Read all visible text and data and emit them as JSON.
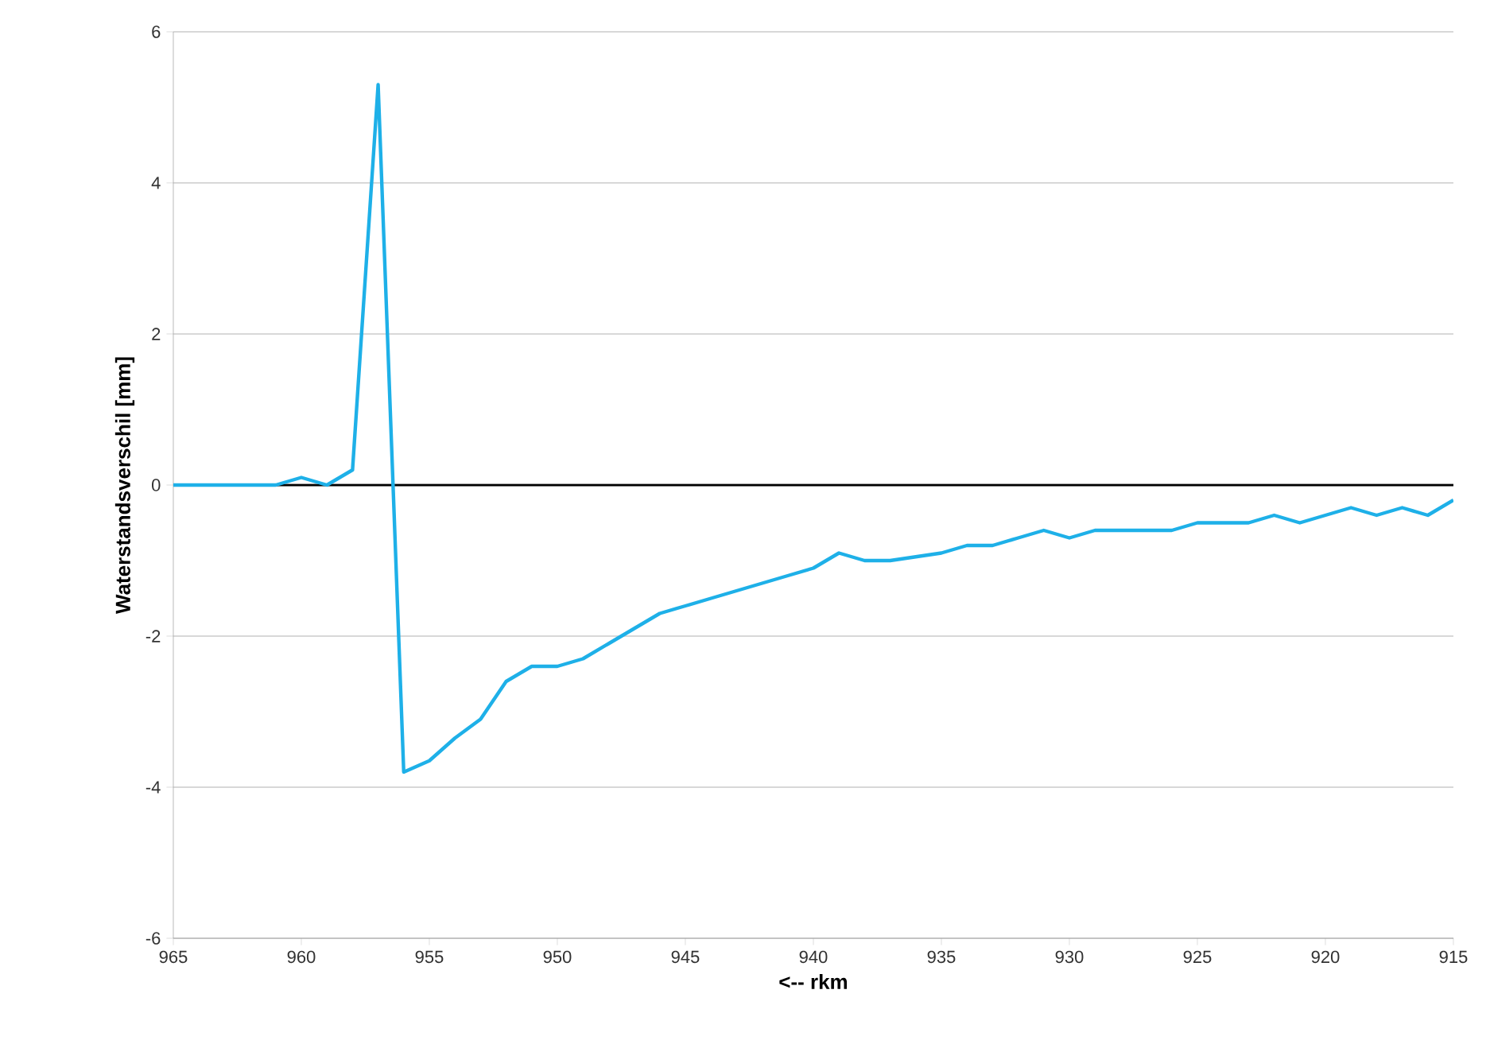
{
  "chart_data": {
    "type": "line",
    "xlabel": "<-- rkm",
    "ylabel": "Waterstandsverschil [mm]",
    "x": [
      965,
      964,
      963,
      962,
      961,
      960,
      959,
      958,
      957,
      956,
      955,
      954,
      953,
      952,
      951,
      950,
      949,
      948,
      947,
      946,
      945,
      944,
      943,
      942,
      941,
      940,
      939,
      938,
      937,
      936,
      935,
      934,
      933,
      932,
      931,
      930,
      929,
      928,
      927,
      926,
      925,
      924,
      923,
      922,
      921,
      920,
      919,
      918,
      917,
      916,
      915
    ],
    "series": [
      {
        "color": "#1eb0e8",
        "values": [
          0,
          0,
          0,
          0,
          0,
          0.1,
          0,
          0.2,
          5.3,
          -3.8,
          -3.65,
          -3.35,
          -3.1,
          -2.6,
          -2.4,
          -2.4,
          -2.3,
          -2.1,
          -1.9,
          -1.7,
          -1.6,
          -1.5,
          -1.4,
          -1.3,
          -1.2,
          -1.1,
          -0.9,
          -1.0,
          -1.0,
          -0.95,
          -0.9,
          -0.8,
          -0.8,
          -0.7,
          -0.6,
          -0.7,
          -0.6,
          -0.6,
          -0.6,
          -0.6,
          -0.5,
          -0.5,
          -0.5,
          -0.4,
          -0.5,
          -0.4,
          -0.3,
          -0.4,
          -0.3,
          -0.4,
          -0.2
        ]
      }
    ],
    "xlim": [
      965,
      915
    ],
    "xticks": [
      965,
      960,
      955,
      950,
      945,
      940,
      935,
      930,
      925,
      920,
      915
    ],
    "ylim": [
      -6,
      6
    ],
    "yticks": [
      -6,
      -4,
      -2,
      0,
      2,
      4,
      6
    ],
    "grid": "y",
    "marker": "none",
    "line_style": "solid",
    "ref_lines": [
      {
        "axis": "y",
        "value": 0,
        "color": "#000000"
      }
    ]
  }
}
